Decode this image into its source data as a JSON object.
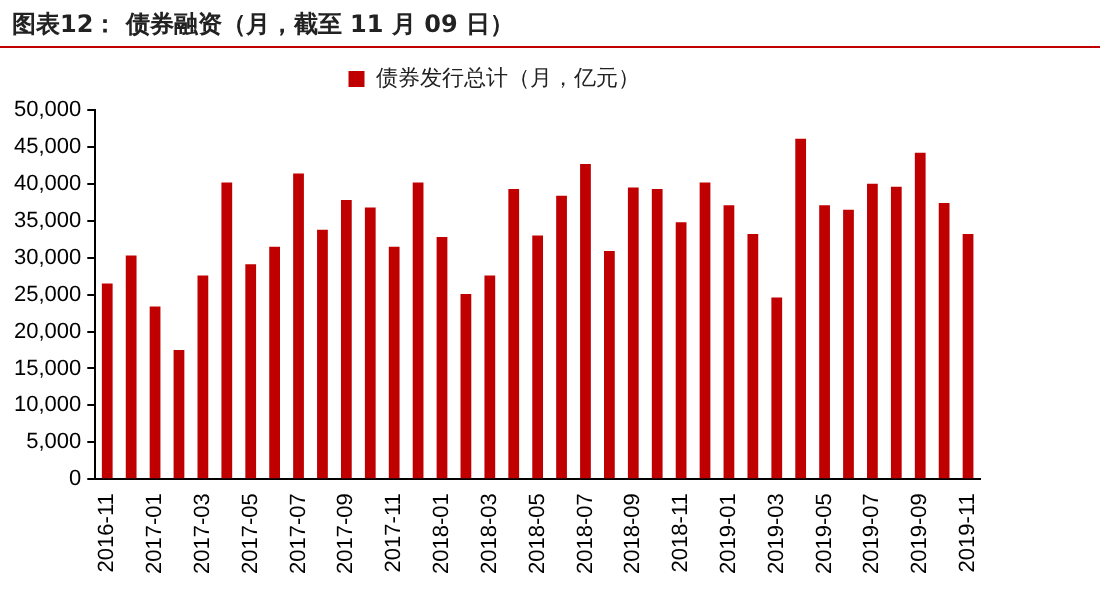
{
  "chart_data": {
    "type": "bar",
    "title": "图表12： 债券融资（月，截至 11 月 09 日）",
    "categories": [
      "2016-11",
      null,
      "2017-01",
      null,
      "2017-03",
      null,
      "2017-05",
      null,
      "2017-07",
      null,
      "2017-09",
      null,
      "2017-11",
      null,
      "2018-01",
      null,
      "2018-03",
      null,
      "2018-05",
      null,
      "2018-07",
      null,
      "2018-09",
      null,
      "2018-11",
      null,
      "2019-01",
      null,
      "2019-03",
      null,
      "2019-05",
      null,
      "2019-07",
      null,
      "2019-09",
      null,
      "2019-11"
    ],
    "series": [
      {
        "name": "债券发行总计（月，亿元）",
        "color": "#c00000",
        "values": [
          26500,
          30300,
          23400,
          17500,
          27600,
          40200,
          29100,
          31500,
          41400,
          33800,
          37800,
          36800,
          31500,
          40200,
          32800,
          25100,
          27600,
          39300,
          33000,
          38400,
          42700,
          30900,
          39500,
          39300,
          34800,
          40200,
          37100,
          33200,
          24600,
          46100,
          37100,
          36500,
          40000,
          39600,
          44200,
          37400,
          33200
        ]
      }
    ],
    "ylim": [
      0,
      50000
    ],
    "yticks": [
      {
        "value": 0,
        "label": "0"
      },
      {
        "value": 5000,
        "label": "5,000"
      },
      {
        "value": 10000,
        "label": "10,000"
      },
      {
        "value": 15000,
        "label": "15,000"
      },
      {
        "value": 20000,
        "label": "20,000"
      },
      {
        "value": 25000,
        "label": "25,000"
      },
      {
        "value": 30000,
        "label": "30,000"
      },
      {
        "value": 35000,
        "label": "35,000"
      },
      {
        "value": 40000,
        "label": "40,000"
      },
      {
        "value": 45000,
        "label": "45,000"
      },
      {
        "value": 50000,
        "label": "50,000"
      }
    ],
    "grid": false,
    "legend": "top"
  }
}
